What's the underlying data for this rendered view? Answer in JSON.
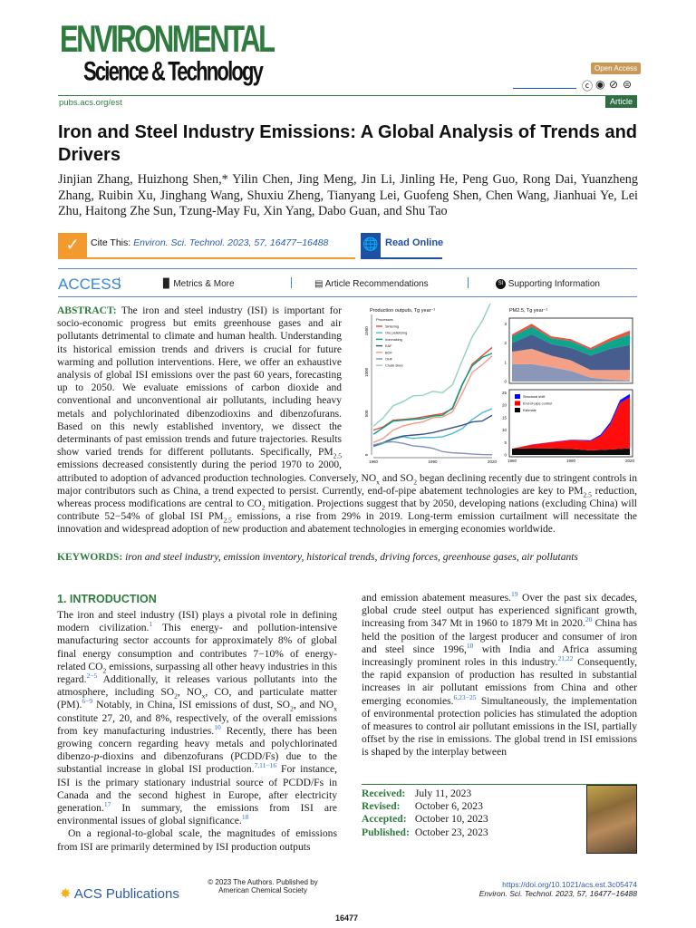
{
  "header": {
    "journal_logo_line1": "ENVIRONMENTAL",
    "journal_logo_line2": "Science & Technology",
    "open_access": "Open Access",
    "license_icons": [
      "cc-icon",
      "by-icon",
      "nc-icon",
      "nd-icon"
    ],
    "site": "pubs.acs.org/est",
    "article_type": "Article"
  },
  "title": "Iron and Steel Industry Emissions: A Global Analysis of Trends and Drivers",
  "authors": "Jinjian Zhang, Huizhong Shen,* Yilin Chen, Jing Meng, Jin Li, Jinling He, Peng Guo, Rong Dai, Yuanzheng Zhang, Ruibin Xu, Jinghang Wang, Shuxiu Zheng, Tianyang Lei, Guofeng Shen, Chen Wang, Jianhuai Ye, Lei Zhu, Haitong Zhe Sun, Tzung-May Fu, Xin Yang, Dabo Guan, and Shu Tao",
  "cite": {
    "label": "Cite This:",
    "ref": "Environ. Sci. Technol. 2023, 57, 16477−16488",
    "read_online": "Read Online"
  },
  "access_bar": {
    "access": "ACCESS",
    "metrics": "Metrics & More",
    "recommendations": "Article Recommendations",
    "supporting": "Supporting Information",
    "si_badge": "SI"
  },
  "abstract": {
    "label": "ABSTRACT:",
    "segments": [
      " The iron and steel industry (ISI) is important for socio-economic progress but emits greenhouse gases and air pollutants detrimental to climate and human health. Understanding its historical emission trends and drivers is crucial for future warming and pollution interventions. Here, we offer an exhaustive analysis of global ISI emissions over the past 60 years, forecasting up to 2050. We evaluate emissions of carbon dioxide and conventional and unconventional air pollutants, including heavy metals and polychlorinated dibenzodioxins and dibenzofurans. Based on this newly established inventory, we dissect the determinants of past emission trends and future trajectories. Results show varied trends for different pollutants. Specifically, PM",
      {
        "sub": "2.5"
      },
      " emissions decreased consistently during the period 1970 to 2000, attributed to adoption of advanced production technologies. Conversely, NO",
      {
        "sub": "x"
      },
      " and SO",
      {
        "sub": "2"
      },
      " began declining recently due to stringent controls in major contributors such as China, a trend expected to persist. Currently, end-of-pipe abatement technologies are key to PM",
      {
        "sub": "2.5"
      },
      " reduction, whereas process modifications are central to CO",
      {
        "sub": "2"
      },
      " mitigation. Projections suggest that by 2050, developing nations (excluding China) will contribute 52−54% of global ISI PM",
      {
        "sub": "2.5"
      },
      " emissions, a rise from 29% in 2019. Long-term emission curtailment will necessitate the innovation and widespread adoption of new production and abatement technologies in emerging economies worldwide."
    ]
  },
  "keywords": {
    "label": "KEYWORDS:",
    "text": "iron and steel industry, emission inventory, historical trends, driving forces, greenhouse gases, air pollutants"
  },
  "chart_data": [
    {
      "type": "line",
      "title": "Production outputs, Tg year⁻¹",
      "x": [
        1960,
        1965,
        1970,
        1975,
        1980,
        1985,
        1990,
        1995,
        2000,
        2005,
        2010,
        2015,
        2020
      ],
      "xticks": [
        1960,
        1990,
        2020
      ],
      "yticks": [
        0,
        500,
        1000,
        1500
      ],
      "ylim": [
        0,
        1700
      ],
      "legend_title": "Processes",
      "legend_position": "top-left",
      "series": [
        {
          "name": "Sintering",
          "color": "#e64b35",
          "values": [
            300,
            340,
            420,
            430,
            440,
            460,
            480,
            500,
            560,
            850,
            1100,
            1200,
            1300
          ]
        },
        {
          "name": "Ore pelletizing",
          "color": "#4dbbd5",
          "values": [
            100,
            140,
            190,
            220,
            200,
            210,
            210,
            220,
            260,
            320,
            430,
            510,
            560
          ]
        },
        {
          "name": "Ironmaking",
          "color": "#00a087",
          "values": [
            250,
            330,
            410,
            420,
            430,
            440,
            470,
            480,
            570,
            860,
            1080,
            1180,
            1230
          ]
        },
        {
          "name": "EAF",
          "color": "#3c5488",
          "values": [
            110,
            150,
            200,
            230,
            240,
            250,
            270,
            300,
            330,
            360,
            400,
            410,
            480
          ]
        },
        {
          "name": "BOF",
          "color": "#f39b7f",
          "values": [
            150,
            200,
            300,
            350,
            380,
            400,
            450,
            460,
            520,
            750,
            1000,
            1090,
            1200
          ]
        },
        {
          "name": "OHF",
          "color": "#8491b4",
          "values": [
            120,
            150,
            160,
            140,
            110,
            100,
            80,
            40,
            25,
            20,
            10,
            5,
            3
          ]
        },
        {
          "name": "Crude steel",
          "color": "#91d1c2",
          "values": [
            347,
            450,
            595,
            645,
            715,
            720,
            770,
            752,
            850,
            1148,
            1433,
            1620,
            1879
          ]
        }
      ]
    },
    {
      "type": "area",
      "title": "PM2.5, Tg year⁻¹",
      "x": [
        1960,
        1970,
        1980,
        1990,
        2000,
        2010,
        2020
      ],
      "xticks": [
        1960,
        1990,
        2020
      ],
      "yticks": [
        0,
        1,
        2,
        3
      ],
      "ylim": [
        0,
        3.2
      ],
      "stacked": true,
      "series": [
        {
          "color": "#8491b4",
          "values": [
            0.9,
            0.9,
            0.75,
            0.55,
            0.2,
            0.1,
            0.05
          ]
        },
        {
          "color": "#f39b7f",
          "values": [
            0.65,
            0.8,
            0.6,
            0.55,
            0.4,
            0.5,
            0.55
          ]
        },
        {
          "color": "#3c5488",
          "values": [
            0.45,
            0.75,
            0.6,
            0.65,
            0.75,
            1.1,
            1.3
          ]
        },
        {
          "color": "#00a087",
          "values": [
            0.35,
            0.4,
            0.3,
            0.35,
            0.3,
            0.4,
            0.55
          ]
        },
        {
          "color": "#e64b35",
          "values": [
            0.1,
            0.15,
            0.1,
            0.1,
            0.1,
            0.15,
            0.2
          ]
        }
      ]
    },
    {
      "type": "area",
      "x": [
        1960,
        1970,
        1980,
        1990,
        2000,
        2005,
        2010,
        2015,
        2020
      ],
      "xticks": [
        1960,
        1990,
        2020
      ],
      "yticks": [
        0,
        5,
        10,
        15,
        20,
        25
      ],
      "ylim": [
        0,
        25.5
      ],
      "stacked": true,
      "legend_position": "top-left",
      "series": [
        {
          "name": "Estimate",
          "color": "#000000",
          "values": [
            2.5,
            2.7,
            2.6,
            2.4,
            1.8,
            2.0,
            2.2,
            2.4,
            2.7
          ]
        },
        {
          "name": "End-of-pipe control",
          "color": "#ff0000",
          "values": [
            0,
            1.4,
            2.5,
            3.5,
            3.8,
            5.5,
            10.0,
            18.5,
            20.5
          ]
        },
        {
          "name": "Structural shift",
          "color": "#0000ff",
          "values": [
            0,
            0.1,
            0.1,
            0.2,
            0.3,
            0.6,
            0.9,
            1.2,
            1.3
          ]
        }
      ]
    }
  ],
  "intro": {
    "heading": "1. INTRODUCTION",
    "left": [
      [
        "The iron and steel industry (ISI) plays a pivotal role in defining modern civilization.",
        {
          "sup": "1"
        },
        " This energy- and pollution-intensive manufacturing sector accounts for approximately 8% of global final energy consumption and contributes 7−10% of energy-related CO",
        {
          "sub": "2"
        },
        " emissions, surpassing all other heavy industries in this regard.",
        {
          "sup": "2−5"
        },
        " Additionally, it releases various pollutants into the atmosphere, including SO",
        {
          "sub": "2"
        },
        ", NO",
        {
          "sub": "x"
        },
        ", CO, and particulate matter (PM).",
        {
          "sup": "6−9"
        },
        " Notably, in China, ISI emissions of dust, SO",
        {
          "sub": "2"
        },
        ", and NO",
        {
          "sub": "x"
        },
        " constitute 27, 20, and 8%, respectively, of the overall emissions from key manufacturing industries.",
        {
          "sup": "10"
        },
        " Recently, there has been growing concern regarding heavy metals and polychlorinated dibenzo-",
        {
          "i": "p"
        },
        "-dioxins and dibenzofurans (PCDD/Fs) due to the substantial increase in global ISI production.",
        {
          "sup": "7,11−16"
        },
        " For instance, ISI is the primary stationary industrial source of PCDD/Fs in Canada and the second highest in Europe, after electricity generation.",
        {
          "sup": "17"
        },
        " In summary, the emissions from ISI are environmental issues of global significance.",
        {
          "sup": "18"
        }
      ],
      [
        "On a regional-to-global scale, the magnitudes of emissions from ISI are primarily determined by ISI production outputs"
      ]
    ],
    "right": [
      [
        "and emission abatement measures.",
        {
          "sup": "19"
        },
        " Over the past six decades, global crude steel output has experienced significant growth, increasing from 347 Mt in 1960 to 1879 Mt in 2020.",
        {
          "sup": "20"
        },
        " China has held the position of the largest producer and consumer of iron and steel since 1996,",
        {
          "sup": "10"
        },
        " with India and Africa assuming increasingly prominent roles in this industry.",
        {
          "sup": "21,22"
        },
        " Consequently, the rapid expansion of production has resulted in substantial increases in air pollutant emissions from China and other emerging economies.",
        {
          "sup": "6,23−25"
        },
        " Simultaneously, the implementation of environmental protection policies has stimulated the adoption of measures to control air pollutant emissions in the ISI, partially offset by the rise in emissions. The global trend in ISI emissions is shaped by the interplay between"
      ]
    ]
  },
  "dates": [
    {
      "k": "Received:",
      "v": "July 11, 2023"
    },
    {
      "k": "Revised:",
      "v": "October 6, 2023"
    },
    {
      "k": "Accepted:",
      "v": "October 10, 2023"
    },
    {
      "k": "Published:",
      "v": "October 23, 2023"
    }
  ],
  "footer": {
    "publisher_logo": "ACS Publications",
    "copyright": "© 2023 The Authors. Published by American Chemical Society",
    "page": "16477",
    "doi": "https://doi.org/10.1021/acs.est.3c05474",
    "journal_ref": "Environ. Sci. Technol. 2023, 57, 16477−16488"
  }
}
